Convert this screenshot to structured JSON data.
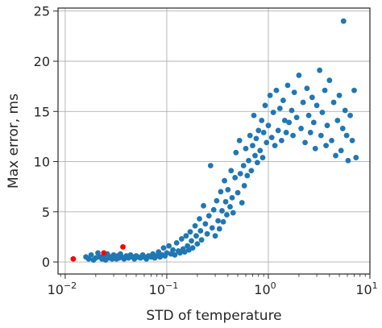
{
  "chart_data": {
    "type": "scatter",
    "xlabel": "STD of temperature",
    "ylabel": "Max error, ms",
    "x_scale": "log",
    "xlim": [
      0.0085,
      10
    ],
    "ylim": [
      -1.2,
      25.3
    ],
    "x_ticks": [
      {
        "value": 0.01,
        "base": "10",
        "exp": "−2"
      },
      {
        "value": 0.1,
        "base": "10",
        "exp": "−1"
      },
      {
        "value": 1,
        "base": "10",
        "exp": "0"
      },
      {
        "value": 10,
        "base": "10",
        "exp": "1"
      }
    ],
    "y_ticks": [
      {
        "value": 0,
        "label": "0"
      },
      {
        "value": 5,
        "label": "5"
      },
      {
        "value": 10,
        "label": "10"
      },
      {
        "value": 15,
        "label": "15"
      },
      {
        "value": 20,
        "label": "20"
      },
      {
        "value": 25,
        "label": "25"
      }
    ],
    "grid": true,
    "series": [
      {
        "color": "#1f77b4",
        "points": [
          [
            0.016,
            0.5
          ],
          [
            0.017,
            0.3
          ],
          [
            0.018,
            0.7
          ],
          [
            0.019,
            0.2
          ],
          [
            0.02,
            0.4
          ],
          [
            0.021,
            0.9
          ],
          [
            0.022,
            0.5
          ],
          [
            0.023,
            0.3
          ],
          [
            0.024,
            0.6
          ],
          [
            0.025,
            0.2
          ],
          [
            0.026,
            0.8
          ],
          [
            0.027,
            0.4
          ],
          [
            0.028,
            0.5
          ],
          [
            0.029,
            0.3
          ],
          [
            0.03,
            0.7
          ],
          [
            0.031,
            0.5
          ],
          [
            0.032,
            0.3
          ],
          [
            0.033,
            0.6
          ],
          [
            0.034,
            0.4
          ],
          [
            0.035,
            0.8
          ],
          [
            0.036,
            0.5
          ],
          [
            0.038,
            0.3
          ],
          [
            0.04,
            0.6
          ],
          [
            0.042,
            0.4
          ],
          [
            0.044,
            0.7
          ],
          [
            0.046,
            0.5
          ],
          [
            0.048,
            0.3
          ],
          [
            0.05,
            0.6
          ],
          [
            0.052,
            0.5
          ],
          [
            0.055,
            0.4
          ],
          [
            0.058,
            0.7
          ],
          [
            0.06,
            0.5
          ],
          [
            0.063,
            0.3
          ],
          [
            0.066,
            0.6
          ],
          [
            0.07,
            0.5
          ],
          [
            0.073,
            0.8
          ],
          [
            0.076,
            0.4
          ],
          [
            0.08,
            0.6
          ],
          [
            0.083,
            1.0
          ],
          [
            0.086,
            0.5
          ],
          [
            0.09,
            0.7
          ],
          [
            0.093,
            1.4
          ],
          [
            0.096,
            0.6
          ],
          [
            0.1,
            0.9
          ],
          [
            0.105,
            1.6
          ],
          [
            0.11,
            0.8
          ],
          [
            0.115,
            1.2
          ],
          [
            0.12,
            0.7
          ],
          [
            0.125,
            1.9
          ],
          [
            0.13,
            1.1
          ],
          [
            0.135,
            0.9
          ],
          [
            0.14,
            2.3
          ],
          [
            0.145,
            1.3
          ],
          [
            0.15,
            1.0
          ],
          [
            0.155,
            2.6
          ],
          [
            0.16,
            1.6
          ],
          [
            0.165,
            1.2
          ],
          [
            0.17,
            3.0
          ],
          [
            0.175,
            2.1
          ],
          [
            0.18,
            1.4
          ],
          [
            0.19,
            3.6
          ],
          [
            0.195,
            2.6
          ],
          [
            0.2,
            1.8
          ],
          [
            0.21,
            4.3
          ],
          [
            0.215,
            3.1
          ],
          [
            0.22,
            2.2
          ],
          [
            0.23,
            5.6
          ],
          [
            0.24,
            3.8
          ],
          [
            0.25,
            2.8
          ],
          [
            0.26,
            4.6
          ],
          [
            0.27,
            9.6
          ],
          [
            0.28,
            3.4
          ],
          [
            0.29,
            5.2
          ],
          [
            0.3,
            2.6
          ],
          [
            0.31,
            6.1
          ],
          [
            0.32,
            4.1
          ],
          [
            0.33,
            3.3
          ],
          [
            0.34,
            7.0
          ],
          [
            0.35,
            5.1
          ],
          [
            0.36,
            4.0
          ],
          [
            0.37,
            8.1
          ],
          [
            0.38,
            6.0
          ],
          [
            0.39,
            4.7
          ],
          [
            0.4,
            7.2
          ],
          [
            0.42,
            5.5
          ],
          [
            0.43,
            9.1
          ],
          [
            0.44,
            6.4
          ],
          [
            0.45,
            4.9
          ],
          [
            0.47,
            8.4
          ],
          [
            0.48,
            10.9
          ],
          [
            0.5,
            6.9
          ],
          [
            0.52,
            12.1
          ],
          [
            0.53,
            8.8
          ],
          [
            0.55,
            5.9
          ],
          [
            0.57,
            9.6
          ],
          [
            0.58,
            7.6
          ],
          [
            0.6,
            11.3
          ],
          [
            0.62,
            8.6
          ],
          [
            0.64,
            10.1
          ],
          [
            0.66,
            12.6
          ],
          [
            0.68,
            9.1
          ],
          [
            0.7,
            11.6
          ],
          [
            0.72,
            14.6
          ],
          [
            0.74,
            10.6
          ],
          [
            0.76,
            12.3
          ],
          [
            0.78,
            9.9
          ],
          [
            0.8,
            13.1
          ],
          [
            0.83,
            11.1
          ],
          [
            0.86,
            14.1
          ],
          [
            0.88,
            10.4
          ],
          [
            0.9,
            12.9
          ],
          [
            0.93,
            15.6
          ],
          [
            0.96,
            11.9
          ],
          [
            1.0,
            13.6
          ],
          [
            1.04,
            16.6
          ],
          [
            1.08,
            12.4
          ],
          [
            1.12,
            14.9
          ],
          [
            1.16,
            11.6
          ],
          [
            1.2,
            17.1
          ],
          [
            1.25,
            13.1
          ],
          [
            1.3,
            15.3
          ],
          [
            1.35,
            12.1
          ],
          [
            1.4,
            16.1
          ],
          [
            1.45,
            14.1
          ],
          [
            1.5,
            12.9
          ],
          [
            1.55,
            17.6
          ],
          [
            1.6,
            13.9
          ],
          [
            1.7,
            15.1
          ],
          [
            1.75,
            12.6
          ],
          [
            1.8,
            16.9
          ],
          [
            1.9,
            14.4
          ],
          [
            2.0,
            18.6
          ],
          [
            2.1,
            13.3
          ],
          [
            2.2,
            15.9
          ],
          [
            2.3,
            11.9
          ],
          [
            2.4,
            17.3
          ],
          [
            2.5,
            14.6
          ],
          [
            2.6,
            12.9
          ],
          [
            2.7,
            16.4
          ],
          [
            2.8,
            13.9
          ],
          [
            2.9,
            11.3
          ],
          [
            3.0,
            15.6
          ],
          [
            3.2,
            19.1
          ],
          [
            3.3,
            12.6
          ],
          [
            3.4,
            14.9
          ],
          [
            3.6,
            17.1
          ],
          [
            3.7,
            11.6
          ],
          [
            3.8,
            13.6
          ],
          [
            4.0,
            18.1
          ],
          [
            4.2,
            12.1
          ],
          [
            4.4,
            15.9
          ],
          [
            4.6,
            10.6
          ],
          [
            4.8,
            14.1
          ],
          [
            5.0,
            16.6
          ],
          [
            5.2,
            11.1
          ],
          [
            5.4,
            13.3
          ],
          [
            5.5,
            24.0
          ],
          [
            5.7,
            15.1
          ],
          [
            5.9,
            12.6
          ],
          [
            6.1,
            10.1
          ],
          [
            6.4,
            14.6
          ],
          [
            6.7,
            12.1
          ],
          [
            7.0,
            17.1
          ],
          [
            7.3,
            10.4
          ]
        ]
      },
      {
        "color": "#ff0000",
        "points": [
          [
            0.012,
            0.3
          ],
          [
            0.024,
            0.9
          ],
          [
            0.037,
            1.5
          ]
        ]
      }
    ]
  }
}
